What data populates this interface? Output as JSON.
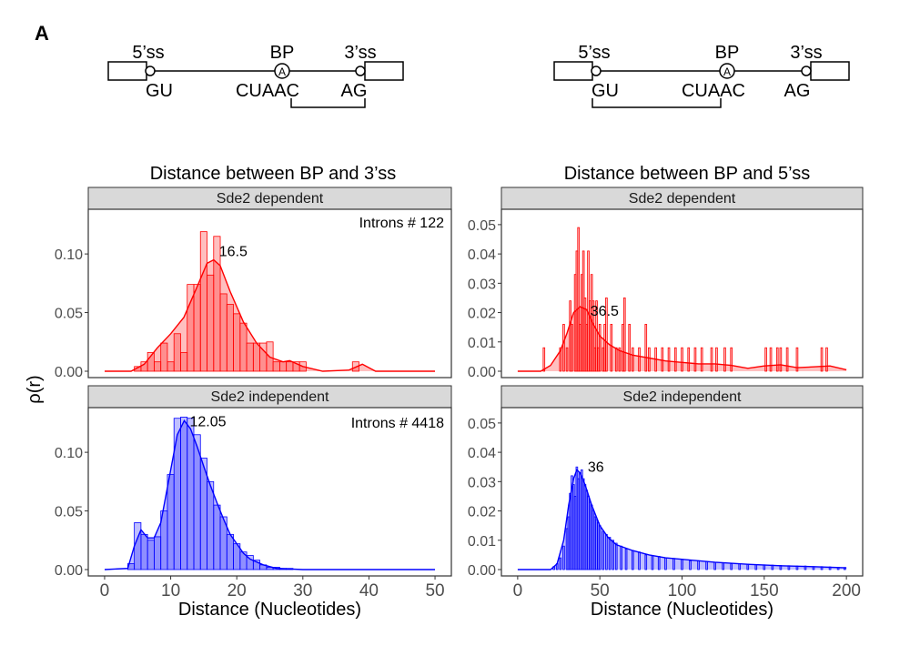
{
  "panel_label": "A",
  "diagrams": [
    {
      "id": "bp-3ss",
      "labels_top": [
        "5’ss",
        "BP",
        "3’ss"
      ],
      "labels_bottom": [
        "GU",
        "CUAAC",
        "AG"
      ],
      "bp_symbol": "A",
      "bracket": "BP-3ss"
    },
    {
      "id": "bp-5ss",
      "labels_top": [
        "5’ss",
        "BP",
        "3’ss"
      ],
      "labels_bottom": [
        "GU",
        "CUAAC",
        "AG"
      ],
      "bp_symbol": "A",
      "bracket": "5ss-BP"
    }
  ],
  "y_axis_label": "ρ(r)",
  "chart_data": [
    {
      "type": "histogram",
      "column_title": "Distance between BP and 3’ss",
      "strip": "Sde2 dependent",
      "xlabel": "",
      "xlim": [
        0,
        50
      ],
      "ylim": [
        0,
        0.135
      ],
      "x_ticks": [
        0,
        10,
        20,
        30,
        40,
        50
      ],
      "y_ticks": [
        "0.00",
        "0.05",
        "0.10"
      ],
      "y_tick_values": [
        0,
        0.05,
        0.1
      ],
      "color": "#ff0000",
      "annotation": "Introns # 122",
      "peak_label": "16.5",
      "peak_x": 16.5,
      "bin_width": 1,
      "bars": [
        [
          5,
          0.004
        ],
        [
          6,
          0.008
        ],
        [
          7,
          0.016
        ],
        [
          8,
          0.008
        ],
        [
          9,
          0.024
        ],
        [
          10,
          0.008
        ],
        [
          11,
          0.032
        ],
        [
          12,
          0.016
        ],
        [
          13,
          0.074
        ],
        [
          14,
          0.074
        ],
        [
          15,
          0.119
        ],
        [
          16,
          0.082
        ],
        [
          17,
          0.115
        ],
        [
          18,
          0.066
        ],
        [
          19,
          0.057
        ],
        [
          20,
          0.049
        ],
        [
          21,
          0.041
        ],
        [
          22,
          0.024
        ],
        [
          23,
          0.024
        ],
        [
          24,
          0.024
        ],
        [
          25,
          0.025
        ],
        [
          26,
          0.008
        ],
        [
          27,
          0.008
        ],
        [
          28,
          0.008
        ],
        [
          29,
          0.008
        ],
        [
          30,
          0.008
        ],
        [
          38,
          0.008
        ]
      ],
      "density": [
        [
          0,
          0.0
        ],
        [
          4,
          0.0
        ],
        [
          6,
          0.006
        ],
        [
          8,
          0.02
        ],
        [
          10,
          0.032
        ],
        [
          12,
          0.046
        ],
        [
          14,
          0.072
        ],
        [
          15.5,
          0.092
        ],
        [
          16.5,
          0.095
        ],
        [
          17.5,
          0.09
        ],
        [
          19,
          0.068
        ],
        [
          21,
          0.042
        ],
        [
          23,
          0.024
        ],
        [
          25,
          0.012
        ],
        [
          27,
          0.008
        ],
        [
          28,
          0.009
        ],
        [
          30,
          0.004
        ],
        [
          33,
          0.0
        ],
        [
          37,
          0.001
        ],
        [
          39,
          0.006
        ],
        [
          41,
          0.0
        ],
        [
          50,
          0.0
        ]
      ]
    },
    {
      "type": "histogram",
      "column_title": "Distance between BP and 5’ss",
      "strip": "Sde2 dependent",
      "xlabel": "",
      "xlim": [
        0,
        200
      ],
      "ylim": [
        0,
        0.054
      ],
      "x_ticks": [
        0,
        50,
        100,
        150,
        200
      ],
      "y_ticks": [
        "0.00",
        "0.01",
        "0.02",
        "0.03",
        "0.04",
        "0.05"
      ],
      "y_tick_values": [
        0,
        0.01,
        0.02,
        0.03,
        0.04,
        0.05
      ],
      "color": "#ff0000",
      "annotation": "",
      "peak_label": "36.5",
      "peak_x": 36.5,
      "bin_width": 1,
      "bars": [
        [
          16,
          0.008
        ],
        [
          26,
          0.008
        ],
        [
          28,
          0.016
        ],
        [
          30,
          0.008
        ],
        [
          32,
          0.024
        ],
        [
          33,
          0.016
        ],
        [
          35,
          0.033
        ],
        [
          36,
          0.041
        ],
        [
          37,
          0.049
        ],
        [
          38,
          0.016
        ],
        [
          39,
          0.033
        ],
        [
          40,
          0.041
        ],
        [
          41,
          0.025
        ],
        [
          42,
          0.016
        ],
        [
          43,
          0.041
        ],
        [
          44,
          0.024
        ],
        [
          45,
          0.033
        ],
        [
          46,
          0.024
        ],
        [
          47,
          0.008
        ],
        [
          48,
          0.024
        ],
        [
          49,
          0.008
        ],
        [
          50,
          0.016
        ],
        [
          52,
          0.008
        ],
        [
          53,
          0.016
        ],
        [
          54,
          0.025
        ],
        [
          57,
          0.016
        ],
        [
          60,
          0.008
        ],
        [
          62,
          0.008
        ],
        [
          64,
          0.016
        ],
        [
          65,
          0.025
        ],
        [
          68,
          0.016
        ],
        [
          70,
          0.008
        ],
        [
          74,
          0.008
        ],
        [
          78,
          0.016
        ],
        [
          80,
          0.008
        ],
        [
          84,
          0.008
        ],
        [
          88,
          0.008
        ],
        [
          92,
          0.008
        ],
        [
          96,
          0.008
        ],
        [
          100,
          0.008
        ],
        [
          104,
          0.008
        ],
        [
          108,
          0.008
        ],
        [
          112,
          0.008
        ],
        [
          118,
          0.008
        ],
        [
          121,
          0.008
        ],
        [
          126,
          0.008
        ],
        [
          130,
          0.008
        ],
        [
          151,
          0.008
        ],
        [
          154,
          0.008
        ],
        [
          158,
          0.008
        ],
        [
          160,
          0.008
        ],
        [
          164,
          0.008
        ],
        [
          170,
          0.008
        ],
        [
          185,
          0.008
        ],
        [
          188,
          0.008
        ]
      ],
      "density": [
        [
          0,
          0.0
        ],
        [
          14,
          0.0
        ],
        [
          20,
          0.002
        ],
        [
          26,
          0.007
        ],
        [
          30,
          0.013
        ],
        [
          34,
          0.02
        ],
        [
          38,
          0.022
        ],
        [
          42,
          0.021
        ],
        [
          46,
          0.016
        ],
        [
          50,
          0.012
        ],
        [
          56,
          0.009
        ],
        [
          62,
          0.007
        ],
        [
          70,
          0.0055
        ],
        [
          80,
          0.0045
        ],
        [
          90,
          0.0035
        ],
        [
          100,
          0.003
        ],
        [
          110,
          0.0025
        ],
        [
          120,
          0.0025
        ],
        [
          130,
          0.002
        ],
        [
          140,
          0.001
        ],
        [
          150,
          0.0018
        ],
        [
          160,
          0.0022
        ],
        [
          170,
          0.0012
        ],
        [
          180,
          0.0015
        ],
        [
          190,
          0.0018
        ],
        [
          200,
          0.0005
        ]
      ]
    },
    {
      "type": "histogram",
      "column_title": "",
      "strip": "Sde2 independent",
      "xlabel": "Distance (Nucleotides)",
      "xlim": [
        0,
        50
      ],
      "ylim": [
        0,
        0.135
      ],
      "x_ticks": [
        0,
        10,
        20,
        30,
        40,
        50
      ],
      "y_ticks": [
        "0.00",
        "0.05",
        "0.10"
      ],
      "y_tick_values": [
        0,
        0.05,
        0.1
      ],
      "color": "#0000ff",
      "annotation": "Introns # 4418",
      "peak_label": "12.05",
      "peak_x": 12.05,
      "bin_width": 1,
      "bars": [
        [
          4,
          0.005
        ],
        [
          5,
          0.04
        ],
        [
          6,
          0.03
        ],
        [
          7,
          0.025
        ],
        [
          8,
          0.028
        ],
        [
          9,
          0.05
        ],
        [
          10,
          0.081
        ],
        [
          11,
          0.129
        ],
        [
          12,
          0.13
        ],
        [
          13,
          0.129
        ],
        [
          14,
          0.115
        ],
        [
          15,
          0.095
        ],
        [
          16,
          0.075
        ],
        [
          17,
          0.055
        ],
        [
          18,
          0.045
        ],
        [
          19,
          0.03
        ],
        [
          20,
          0.022
        ],
        [
          21,
          0.015
        ],
        [
          22,
          0.012
        ],
        [
          23,
          0.008
        ],
        [
          24,
          0.004
        ],
        [
          25,
          0.002
        ],
        [
          26,
          0.002
        ],
        [
          27,
          0.001
        ],
        [
          28,
          0.001
        ]
      ],
      "density": [
        [
          0,
          0.0
        ],
        [
          3.5,
          0.001
        ],
        [
          4.5,
          0.02
        ],
        [
          5.5,
          0.034
        ],
        [
          6.5,
          0.027
        ],
        [
          7.5,
          0.027
        ],
        [
          8.5,
          0.04
        ],
        [
          10,
          0.085
        ],
        [
          11,
          0.115
        ],
        [
          12.05,
          0.127
        ],
        [
          13,
          0.12
        ],
        [
          14,
          0.105
        ],
        [
          15,
          0.088
        ],
        [
          16,
          0.072
        ],
        [
          17,
          0.057
        ],
        [
          18,
          0.043
        ],
        [
          19,
          0.03
        ],
        [
          20,
          0.022
        ],
        [
          21,
          0.014
        ],
        [
          22,
          0.009
        ],
        [
          24,
          0.004
        ],
        [
          26,
          0.001
        ],
        [
          30,
          0.0
        ],
        [
          50,
          0.0
        ]
      ]
    },
    {
      "type": "histogram",
      "column_title": "",
      "strip": "Sde2 independent",
      "xlabel": "Distance (Nucleotides)",
      "xlim": [
        0,
        200
      ],
      "ylim": [
        0,
        0.054
      ],
      "x_ticks": [
        0,
        50,
        100,
        150,
        200
      ],
      "y_ticks": [
        "0.00",
        "0.01",
        "0.02",
        "0.03",
        "0.04",
        "0.05"
      ],
      "y_tick_values": [
        0,
        0.01,
        0.02,
        0.03,
        0.04,
        0.05
      ],
      "color": "#0000ff",
      "annotation": "",
      "peak_label": "36",
      "peak_x": 36,
      "bin_width": 1,
      "bars": [
        [
          22,
          0.001
        ],
        [
          24,
          0.002
        ],
        [
          26,
          0.004
        ],
        [
          28,
          0.008
        ],
        [
          30,
          0.014
        ],
        [
          31,
          0.018
        ],
        [
          32,
          0.026
        ],
        [
          33,
          0.032
        ],
        [
          34,
          0.029
        ],
        [
          35,
          0.025
        ],
        [
          36,
          0.035
        ],
        [
          37,
          0.031
        ],
        [
          38,
          0.033
        ],
        [
          39,
          0.034
        ],
        [
          40,
          0.031
        ],
        [
          41,
          0.029
        ],
        [
          42,
          0.027
        ],
        [
          43,
          0.025
        ],
        [
          44,
          0.023
        ],
        [
          45,
          0.022
        ],
        [
          46,
          0.02
        ],
        [
          47,
          0.018
        ],
        [
          48,
          0.017
        ],
        [
          49,
          0.016
        ],
        [
          50,
          0.015
        ],
        [
          52,
          0.013
        ],
        [
          54,
          0.012
        ],
        [
          56,
          0.011
        ],
        [
          58,
          0.01
        ],
        [
          60,
          0.009
        ],
        [
          63,
          0.008
        ],
        [
          66,
          0.007
        ],
        [
          70,
          0.0065
        ],
        [
          74,
          0.006
        ],
        [
          78,
          0.005
        ],
        [
          82,
          0.0048
        ],
        [
          86,
          0.0045
        ],
        [
          90,
          0.004
        ],
        [
          95,
          0.0038
        ],
        [
          100,
          0.0035
        ],
        [
          105,
          0.003
        ],
        [
          110,
          0.003
        ],
        [
          115,
          0.0028
        ],
        [
          120,
          0.0025
        ],
        [
          125,
          0.0023
        ],
        [
          130,
          0.002
        ],
        [
          135,
          0.002
        ],
        [
          140,
          0.0018
        ],
        [
          145,
          0.0017
        ],
        [
          150,
          0.0016
        ],
        [
          155,
          0.0015
        ],
        [
          160,
          0.0014
        ],
        [
          165,
          0.0013
        ],
        [
          170,
          0.0012
        ],
        [
          175,
          0.0012
        ],
        [
          180,
          0.001
        ],
        [
          185,
          0.001
        ],
        [
          190,
          0.0009
        ],
        [
          195,
          0.0008
        ],
        [
          199,
          0.0007
        ]
      ],
      "density": [
        [
          0,
          0.0
        ],
        [
          20,
          0.0
        ],
        [
          24,
          0.002
        ],
        [
          28,
          0.01
        ],
        [
          31,
          0.022
        ],
        [
          34,
          0.031
        ],
        [
          36,
          0.034
        ],
        [
          38,
          0.033
        ],
        [
          41,
          0.029
        ],
        [
          45,
          0.022
        ],
        [
          50,
          0.015
        ],
        [
          55,
          0.011
        ],
        [
          60,
          0.0085
        ],
        [
          70,
          0.0065
        ],
        [
          80,
          0.005
        ],
        [
          90,
          0.004
        ],
        [
          100,
          0.0035
        ],
        [
          120,
          0.0025
        ],
        [
          140,
          0.0018
        ],
        [
          160,
          0.0013
        ],
        [
          180,
          0.001
        ],
        [
          200,
          0.0006
        ]
      ]
    }
  ]
}
